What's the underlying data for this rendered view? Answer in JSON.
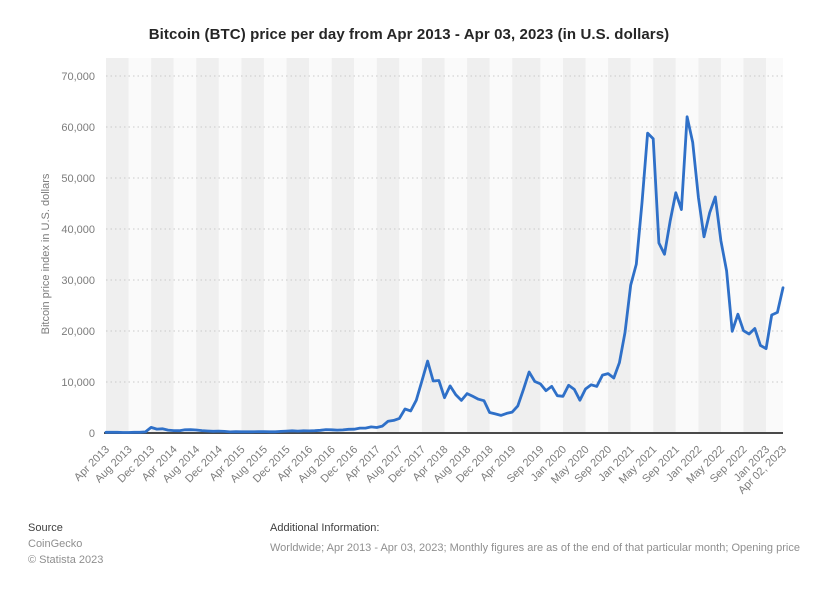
{
  "colors": {
    "line": "#2F70C8",
    "stripe": "#EFEFEF",
    "stripe_alt": "#FAFAFA",
    "gridline": "#C9C9C9",
    "axis": "#4A4A4A",
    "tick_text": "#7C7C7C"
  },
  "footer": {
    "source_label": "Source",
    "source_name": "CoinGecko",
    "copyright": "© Statista 2023",
    "additional_label": "Additional Information:",
    "additional_text": "Worldwide; Apr 2013 - Apr 03, 2023; Monthly figures are as of the end of that particular month; Opening price"
  },
  "chart_data": {
    "type": "line",
    "title": "Bitcoin (BTC) price per day from Apr 2013 - Apr 03, 2023 (in U.S. dollars)",
    "xlabel": "",
    "ylabel": "Bitcoin price index in U.S. dollars",
    "ylim": [
      0,
      70000
    ],
    "grid": "horizontal-dotted",
    "legend": "none",
    "background": "alternating-vertical-stripes",
    "yticks": {
      "labels": [
        "0",
        "10,000",
        "20,000",
        "30,000",
        "40,000",
        "50,000",
        "60,000",
        "70,000"
      ],
      "values": [
        0,
        10000,
        20000,
        30000,
        40000,
        50000,
        60000,
        70000
      ]
    },
    "xticks": [
      {
        "label": "Apr 2013",
        "m": 0
      },
      {
        "label": "Aug 2013",
        "m": 4
      },
      {
        "label": "Dec 2013",
        "m": 8
      },
      {
        "label": "Apr 2014",
        "m": 12
      },
      {
        "label": "Aug 2014",
        "m": 16
      },
      {
        "label": "Dec 2014",
        "m": 20
      },
      {
        "label": "Apr 2015",
        "m": 24
      },
      {
        "label": "Aug 2015",
        "m": 28
      },
      {
        "label": "Dec 2015",
        "m": 32
      },
      {
        "label": "Apr 2016",
        "m": 36
      },
      {
        "label": "Aug 2016",
        "m": 40
      },
      {
        "label": "Dec 2016",
        "m": 44
      },
      {
        "label": "Apr 2017",
        "m": 48
      },
      {
        "label": "Aug 2017",
        "m": 52
      },
      {
        "label": "Dec 2017",
        "m": 56
      },
      {
        "label": "Apr 2018",
        "m": 60
      },
      {
        "label": "Aug 2018",
        "m": 64
      },
      {
        "label": "Dec 2018",
        "m": 68
      },
      {
        "label": "Apr 2019",
        "m": 72
      },
      {
        "label": "Sep 2019",
        "m": 77
      },
      {
        "label": "Jan 2020",
        "m": 81
      },
      {
        "label": "May 2020",
        "m": 85
      },
      {
        "label": "Sep 2020",
        "m": 89
      },
      {
        "label": "Jan 2021",
        "m": 93
      },
      {
        "label": "May 2021",
        "m": 97
      },
      {
        "label": "Sep 2021",
        "m": 101
      },
      {
        "label": "Jan 2022",
        "m": 105
      },
      {
        "label": "May 2022",
        "m": 109
      },
      {
        "label": "Sep 2022",
        "m": 113
      },
      {
        "label": "Jan 2023",
        "m": 117
      },
      {
        "label": "Apr 02, 2023",
        "m": 120
      }
    ],
    "series": [
      {
        "name": "Bitcoin price index in U.S. dollars",
        "start": "Apr 2013",
        "end": "Apr 2023",
        "frequency": "monthly",
        "values": [
          135,
          139,
          129,
          97,
          106,
          141,
          141,
          210,
          1100,
          771,
          830,
          565,
          478,
          457,
          629,
          641,
          594,
          477,
          387,
          338,
          378,
          320,
          217,
          254,
          244,
          236,
          230,
          263,
          284,
          230,
          237,
          314,
          377,
          434,
          369,
          437,
          416,
          448,
          531,
          673,
          624,
          572,
          614,
          729,
          745,
          966,
          970,
          1190,
          1080,
          1350,
          2320,
          2480,
          2870,
          4700,
          4340,
          6440,
          10200,
          14100,
          10200,
          10300,
          6930,
          9240,
          7490,
          6400,
          7730,
          7190,
          6620,
          6340,
          4020,
          3740,
          3460,
          3850,
          4100,
          5320,
          8560,
          11970,
          10090,
          9630,
          8300,
          9150,
          7320,
          7200,
          9350,
          8540,
          6440,
          8620,
          9450,
          9140,
          11350,
          11650,
          10790,
          13780,
          19700,
          29000,
          33100,
          45160,
          58800,
          57700,
          37250,
          35040,
          41600,
          47100,
          43820,
          62000,
          57000,
          46220,
          38480,
          43190,
          46300,
          37710,
          31790,
          19940,
          23290,
          20050,
          19420,
          20490,
          17170,
          16540,
          23130,
          23640,
          28470
        ]
      }
    ]
  }
}
